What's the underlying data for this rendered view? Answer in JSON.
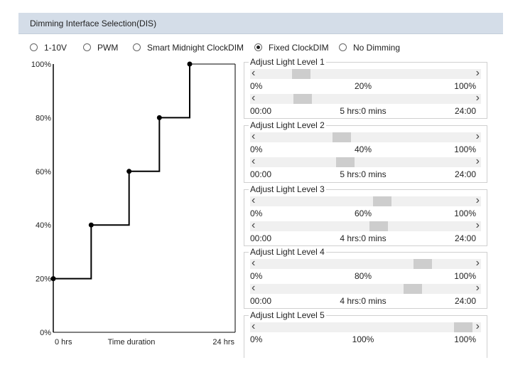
{
  "header": {
    "title": "Dimming Interface Selection(DIS)"
  },
  "modes": [
    {
      "label": "1-10V",
      "selected": false
    },
    {
      "label": "PWM",
      "selected": false
    },
    {
      "label": "Smart Midnight ClockDIM",
      "selected": false
    },
    {
      "label": "Fixed ClockDIM",
      "selected": true
    },
    {
      "label": "No Dimming",
      "selected": false
    }
  ],
  "chart_data": {
    "type": "line",
    "y_ticks": [
      "100%",
      "80%",
      "60%",
      "40%",
      "20%",
      "0%"
    ],
    "x_start_label": "0 hrs",
    "x_label": "Time duration",
    "x_end_label": "24 hrs",
    "ylim": [
      0,
      100
    ],
    "xlim": [
      0,
      24
    ],
    "points": [
      {
        "x": 0,
        "y": 20
      },
      {
        "x": 5,
        "y": 40
      },
      {
        "x": 10,
        "y": 60
      },
      {
        "x": 14,
        "y": 80
      },
      {
        "x": 18,
        "y": 100
      }
    ]
  },
  "levels": [
    {
      "title": "Adjust Light Level 1",
      "level_min": "0%",
      "level_value": "20%",
      "level_max": "100%",
      "level_fraction": 0.2,
      "time_min": "00:00",
      "time_value": "5 hrs:0 mins",
      "time_max": "24:00",
      "time_fraction": 0.208
    },
    {
      "title": "Adjust Light Level 2",
      "level_min": "0%",
      "level_value": "40%",
      "level_max": "100%",
      "level_fraction": 0.4,
      "time_min": "00:00",
      "time_value": "5 hrs:0 mins",
      "time_max": "24:00",
      "time_fraction": 0.417
    },
    {
      "title": "Adjust Light Level 3",
      "level_min": "0%",
      "level_value": "60%",
      "level_max": "100%",
      "level_fraction": 0.6,
      "time_min": "00:00",
      "time_value": "4 hrs:0 mins",
      "time_max": "24:00",
      "time_fraction": 0.583
    },
    {
      "title": "Adjust Light Level 4",
      "level_min": "0%",
      "level_value": "80%",
      "level_max": "100%",
      "level_fraction": 0.8,
      "time_min": "00:00",
      "time_value": "4 hrs:0 mins",
      "time_max": "24:00",
      "time_fraction": 0.75
    },
    {
      "title": "Adjust Light Level 5",
      "level_min": "0%",
      "level_value": "100%",
      "level_max": "100%",
      "level_fraction": 1.0
    }
  ],
  "icons": {
    "left_arrow": "chevron-left-icon",
    "right_arrow": "chevron-right-icon"
  }
}
